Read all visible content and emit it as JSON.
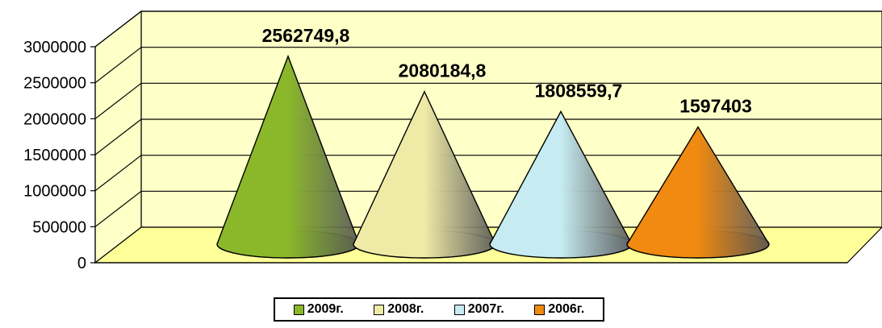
{
  "chart_data": {
    "type": "bar",
    "title": "",
    "xlabel": "",
    "ylabel": "",
    "categories": [
      "2009г.",
      "2008г.",
      "2007г.",
      "2006г."
    ],
    "values": [
      2562749.8,
      2080184.8,
      1808559.7,
      1597403
    ],
    "data_labels": [
      "2562749,8",
      "2080184,8",
      "1808559,7",
      "1597403"
    ],
    "ylim": [
      0,
      3000000
    ],
    "yticks": [
      0,
      500000,
      1000000,
      1500000,
      2000000,
      2500000,
      3000000
    ],
    "ytick_labels": [
      "0",
      "500000",
      "1000000",
      "1500000",
      "2000000",
      "2500000",
      "3000000"
    ],
    "grid": true,
    "legend": "bottom",
    "style": "3d-cone",
    "colors": [
      "#8bb82a",
      "#efeba6",
      "#c6ecf2",
      "#f08a10"
    ],
    "wall_color": "#ffffc8",
    "floor_color": "#ffff99"
  }
}
